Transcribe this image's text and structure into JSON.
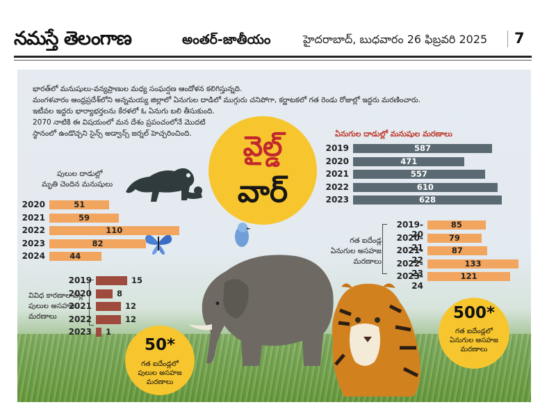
{
  "masthead": {
    "logo": "నమస్తే తెలంగాణ",
    "section": "అంతర్-జాతీయం",
    "dateline": "హైదరాబాద్, బుధవారం 26 ఫిబ్రవరి 2025",
    "page_no": "7"
  },
  "intro_lines": [
    "భారత్‌లో మనుషులు-వన్యప్రాణుల మధ్య సంఘర్షణ ఆందోళన కలిగిస్తున్నది.",
    "మంగళవారం ఆంధ్రప్రదేశ్‌లోని అన్నమయ్య జిల్లాలో ఏనుగుల దాడిలో ముగ్గురు చనిపోగా, కర్ణాటకలో గత రెండు రోజుల్లో ఇద్దరు మరణించారు.",
    "ఇటీవల ఇద్దరు భార్యాభర్తలను కేరళలో ఓ ఏనుగు బలి తీసుకుంది.",
    "2070 నాటికి ఈ విషయంలో మన దేశం ప్రపంచంలోనే మొదటి",
    "స్థానంలో ఉండొచ్చని సైన్స్ అడ్వాన్స్ జర్నల్ హెచ్చరించింది."
  ],
  "title": {
    "line1": "వైల్డ్",
    "line2": "వార్"
  },
  "badges": {
    "tigers": {
      "number": "50*",
      "text": [
        "గత ఐదేండ్లలో",
        "పులుల అసహజ",
        "మరణాలు"
      ]
    },
    "elephants": {
      "number": "500*",
      "text": [
        "గత ఐదేండ్లలో",
        "ఏనుగుల అసహజ",
        "మరణాలు"
      ]
    }
  },
  "colors": {
    "orange": "#f2a55e",
    "slate": "#5b6a72",
    "brown": "#9e4a3c",
    "yellow": "#f7c62e",
    "red_title": "#c2272e"
  },
  "icons": [
    "tiger-attack-illustration-icon",
    "butterfly-icon",
    "bird-icon",
    "elephant-photo-icon",
    "tiger-photo-icon"
  ],
  "chart_data": [
    {
      "type": "bar",
      "orientation": "horizontal",
      "title": [
        "ఏనుగుల దాడుల్లో మనుషుల మరణాలు"
      ],
      "categories": [
        "2019",
        "2020",
        "2021",
        "2022",
        "2023"
      ],
      "values": [
        587,
        471,
        557,
        610,
        628
      ],
      "color": "#5b6a72"
    },
    {
      "type": "bar",
      "orientation": "horizontal",
      "title": [
        "పులుల దాడుల్లో",
        "మృతి చెందిన మనుషులు"
      ],
      "categories": [
        "2020",
        "2021",
        "2022",
        "2023",
        "2024"
      ],
      "values": [
        51,
        59,
        110,
        82,
        44
      ],
      "color": "#f2a55e"
    },
    {
      "type": "bar",
      "orientation": "horizontal",
      "title": [
        "గత ఐదేండ్ల",
        "ఏనుగుల అసహజ",
        "మరణాలు"
      ],
      "categories": [
        "2019-20",
        "2020-21",
        "2021-22",
        "2022-23",
        "2023-24"
      ],
      "values": [
        85,
        79,
        87,
        133,
        121
      ],
      "color": "#f2a55e"
    },
    {
      "type": "bar",
      "orientation": "horizontal",
      "title": [
        "వివిధ కారణాల వల్ల",
        "పులుల అసహజ",
        "మరణాలు"
      ],
      "categories": [
        "2019",
        "2020",
        "2021",
        "2022",
        "2023"
      ],
      "values": [
        15,
        8,
        12,
        12,
        1
      ],
      "color": "#9e4a3c"
    }
  ]
}
